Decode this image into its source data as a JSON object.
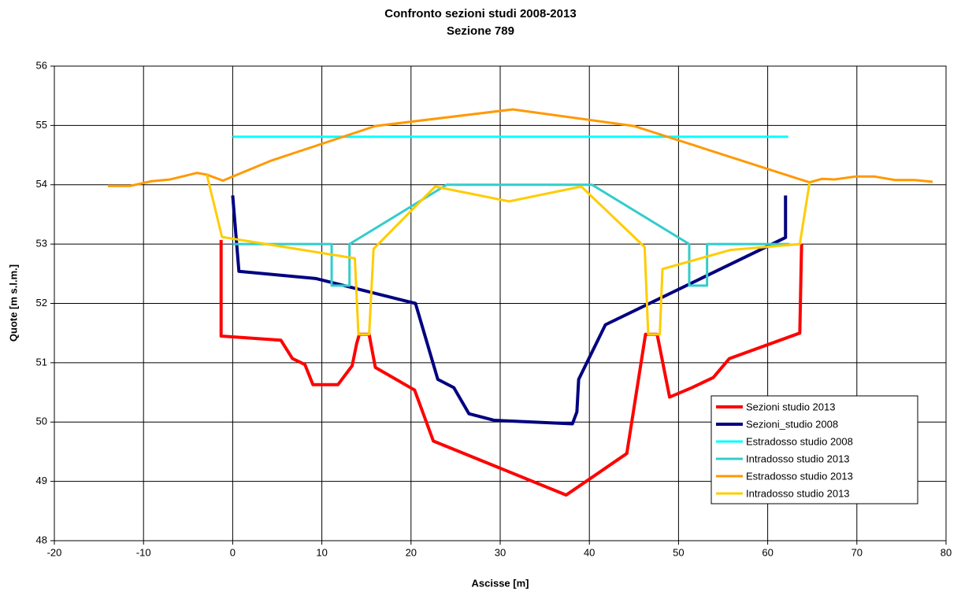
{
  "chart_data": {
    "type": "line",
    "title": "Confronto sezioni studi 2008-2013",
    "subtitle": "Sezione 789",
    "x_label": "Ascisse [m]",
    "y_label": "Quote [m s.l.m.]",
    "xlim": [
      -20,
      80
    ],
    "xticks": [
      -20,
      -10,
      0,
      10,
      20,
      30,
      40,
      50,
      60,
      70,
      80
    ],
    "ylim": [
      48,
      56
    ],
    "yticks": [
      48,
      49,
      50,
      51,
      52,
      53,
      54,
      55,
      56
    ],
    "grid": true,
    "legend": "lower right",
    "series": [
      {
        "name": "Sezioni studio 2013",
        "color": "#ff0000",
        "width": 4,
        "x": [
          -1.3,
          -1.3,
          5.4,
          6.7,
          8.1,
          9.0,
          11.8,
          13.4,
          13.9,
          14.2,
          15.3,
          16.0,
          20.4,
          22.5,
          37.4,
          44.2,
          46.3,
          47.6,
          49.0,
          51.5,
          53.9,
          55.7,
          63.6,
          63.8
        ],
        "values": [
          53.07,
          51.45,
          51.38,
          51.07,
          50.97,
          50.63,
          50.63,
          50.95,
          51.32,
          51.48,
          51.48,
          50.92,
          50.54,
          49.68,
          48.77,
          49.47,
          51.48,
          51.48,
          50.42,
          50.58,
          50.75,
          51.07,
          51.5,
          53.0
        ]
      },
      {
        "name": "Sezioni_studio 2008",
        "color": "#000080",
        "width": 4,
        "x": [
          0.0,
          0.7,
          9.3,
          20.5,
          23.0,
          24.8,
          26.5,
          29.3,
          38.1,
          38.6,
          38.8,
          41.8,
          62.0,
          62.0
        ],
        "values": [
          53.82,
          52.54,
          52.42,
          52.0,
          50.72,
          50.58,
          50.14,
          50.03,
          49.97,
          50.17,
          50.72,
          51.64,
          53.11,
          53.82
        ]
      },
      {
        "name": "Estradosso studio 2008",
        "color": "#00ffff",
        "width": 3,
        "x": [
          0.0,
          62.3
        ],
        "values": [
          54.81,
          54.81
        ]
      },
      {
        "name": "Intradosso studio 2013",
        "color": "#33cccc",
        "width": 3,
        "x": [
          0.0,
          11.1,
          11.1,
          13.1,
          13.1,
          24.0,
          40.3,
          51.2,
          51.2,
          53.2,
          53.2,
          62.4
        ],
        "values": [
          53.0,
          53.0,
          52.3,
          52.3,
          53.0,
          54.0,
          54.0,
          53.0,
          52.3,
          52.3,
          53.0,
          53.0
        ]
      },
      {
        "name": "Estradosso studio 2013",
        "color": "#ff9900",
        "width": 3,
        "x": [
          -14.0,
          -11.5,
          -9.1,
          -7.0,
          -4.0,
          -2.9,
          -1.1,
          4.2,
          16.0,
          31.4,
          45.0,
          64.7,
          66.1,
          67.5,
          69.9,
          71.9,
          74.3,
          76.5,
          78.5
        ],
        "values": [
          53.98,
          53.98,
          54.06,
          54.09,
          54.2,
          54.17,
          54.07,
          54.4,
          54.99,
          55.27,
          54.99,
          54.04,
          54.1,
          54.09,
          54.14,
          54.14,
          54.08,
          54.08,
          54.05
        ]
      },
      {
        "name": "Intradosso studio 2013",
        "color": "#ffcc00",
        "width": 3,
        "x": [
          -2.9,
          -1.2,
          13.7,
          14.1,
          15.3,
          15.8,
          22.7,
          31.0,
          39.1,
          46.2,
          46.6,
          47.9,
          48.2,
          55.8,
          63.6,
          64.7
        ],
        "values": [
          54.17,
          53.12,
          52.76,
          51.48,
          51.48,
          52.92,
          53.97,
          53.72,
          53.97,
          52.95,
          51.48,
          51.48,
          52.58,
          52.9,
          53.0,
          54.04
        ]
      }
    ]
  }
}
